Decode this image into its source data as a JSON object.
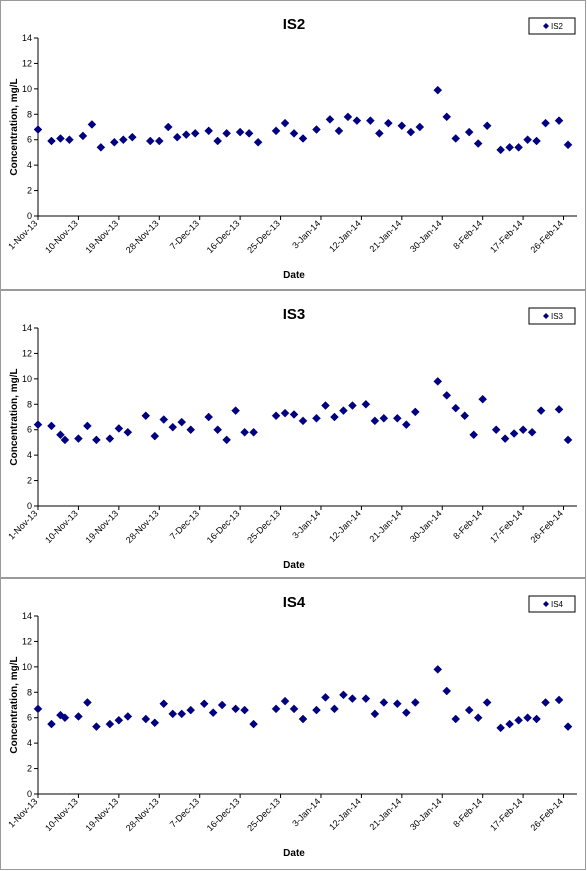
{
  "chart_data": [
    {
      "type": "scatter",
      "title": "IS2",
      "xlabel": "Date",
      "ylabel": "Concentration, mg/L",
      "ylim": [
        0,
        14
      ],
      "yticks": [
        "0",
        "2",
        "4",
        "6",
        "8",
        "10",
        "12",
        "14"
      ],
      "xlim": [
        "1-Nov-13",
        "1-Mar-14"
      ],
      "xtick_labels": [
        "1-Nov-13",
        "10-Nov-13",
        "19-Nov-13",
        "28-Nov-13",
        "7-Dec-13",
        "16-Dec-13",
        "25-Dec-13",
        "3-Jan-14",
        "12-Jan-14",
        "21-Jan-14",
        "30-Jan-14",
        "8-Feb-14",
        "17-Feb-14",
        "26-Feb-14"
      ],
      "grid": false,
      "legend_position": "top-right",
      "marker_color": "#000080",
      "series": [
        {
          "name": "IS2",
          "x": [
            "1-Nov-13",
            "4-Nov-13",
            "6-Nov-13",
            "8-Nov-13",
            "11-Nov-13",
            "13-Nov-13",
            "15-Nov-13",
            "18-Nov-13",
            "20-Nov-13",
            "22-Nov-13",
            "26-Nov-13",
            "28-Nov-13",
            "30-Nov-13",
            "2-Dec-13",
            "4-Dec-13",
            "6-Dec-13",
            "9-Dec-13",
            "11-Dec-13",
            "13-Dec-13",
            "16-Dec-13",
            "18-Dec-13",
            "20-Dec-13",
            "24-Dec-13",
            "26-Dec-13",
            "28-Dec-13",
            "30-Dec-13",
            "2-Jan-14",
            "5-Jan-14",
            "7-Jan-14",
            "9-Jan-14",
            "11-Jan-14",
            "14-Jan-14",
            "16-Jan-14",
            "18-Jan-14",
            "21-Jan-14",
            "23-Jan-14",
            "25-Jan-14",
            "29-Jan-14",
            "31-Jan-14",
            "2-Feb-14",
            "5-Feb-14",
            "7-Feb-14",
            "9-Feb-14",
            "12-Feb-14",
            "14-Feb-14",
            "16-Feb-14",
            "18-Feb-14",
            "20-Feb-14",
            "22-Feb-14",
            "25-Feb-14",
            "27-Feb-14"
          ],
          "y": [
            6.8,
            5.9,
            6.1,
            6.0,
            6.3,
            7.2,
            5.4,
            5.8,
            6.0,
            6.2,
            5.9,
            5.9,
            7.0,
            6.2,
            6.4,
            6.5,
            6.7,
            5.9,
            6.5,
            6.6,
            6.5,
            5.8,
            6.7,
            7.3,
            6.5,
            6.1,
            6.8,
            7.6,
            6.7,
            7.8,
            7.5,
            7.5,
            6.5,
            7.3,
            7.1,
            6.6,
            7.0,
            9.9,
            7.8,
            6.1,
            6.6,
            5.7,
            7.1,
            5.2,
            5.4,
            5.4,
            6.0,
            5.9,
            7.3,
            7.5,
            5.6
          ]
        }
      ]
    },
    {
      "type": "scatter",
      "title": "IS3",
      "xlabel": "Date",
      "ylabel": "Concentration, mg/L",
      "ylim": [
        0,
        14
      ],
      "yticks": [
        "0",
        "2",
        "4",
        "6",
        "8",
        "10",
        "12",
        "14"
      ],
      "xlim": [
        "1-Nov-13",
        "1-Mar-14"
      ],
      "xtick_labels": [
        "1-Nov-13",
        "10-Nov-13",
        "19-Nov-13",
        "28-Nov-13",
        "7-Dec-13",
        "16-Dec-13",
        "25-Dec-13",
        "3-Jan-14",
        "12-Jan-14",
        "21-Jan-14",
        "30-Jan-14",
        "8-Feb-14",
        "17-Feb-14",
        "26-Feb-14"
      ],
      "grid": false,
      "legend_position": "top-right",
      "marker_color": "#000080",
      "series": [
        {
          "name": "IS3",
          "x": [
            "1-Nov-13",
            "4-Nov-13",
            "6-Nov-13",
            "7-Nov-13",
            "10-Nov-13",
            "12-Nov-13",
            "14-Nov-13",
            "17-Nov-13",
            "19-Nov-13",
            "21-Nov-13",
            "25-Nov-13",
            "27-Nov-13",
            "29-Nov-13",
            "1-Dec-13",
            "3-Dec-13",
            "5-Dec-13",
            "9-Dec-13",
            "11-Dec-13",
            "13-Dec-13",
            "15-Dec-13",
            "17-Dec-13",
            "19-Dec-13",
            "24-Dec-13",
            "26-Dec-13",
            "28-Dec-13",
            "30-Dec-13",
            "2-Jan-14",
            "4-Jan-14",
            "6-Jan-14",
            "8-Jan-14",
            "10-Jan-14",
            "13-Jan-14",
            "15-Jan-14",
            "17-Jan-14",
            "20-Jan-14",
            "22-Jan-14",
            "24-Jan-14",
            "29-Jan-14",
            "31-Jan-14",
            "2-Feb-14",
            "4-Feb-14",
            "6-Feb-14",
            "8-Feb-14",
            "11-Feb-14",
            "13-Feb-14",
            "15-Feb-14",
            "17-Feb-14",
            "19-Feb-14",
            "21-Feb-14",
            "25-Feb-14",
            "27-Feb-14"
          ],
          "y": [
            6.4,
            6.3,
            5.6,
            5.2,
            5.3,
            6.3,
            5.2,
            5.3,
            6.1,
            5.8,
            7.1,
            5.5,
            6.8,
            6.2,
            6.6,
            6.0,
            7.0,
            6.0,
            5.2,
            7.5,
            5.8,
            5.8,
            7.1,
            7.3,
            7.2,
            6.7,
            6.9,
            7.9,
            7.0,
            7.5,
            7.9,
            8.0,
            6.7,
            6.9,
            6.9,
            6.4,
            7.4,
            9.8,
            8.7,
            7.7,
            7.1,
            5.6,
            8.4,
            6.0,
            5.3,
            5.7,
            6.0,
            5.8,
            7.5,
            7.6,
            5.2
          ]
        }
      ]
    },
    {
      "type": "scatter",
      "title": "IS4",
      "xlabel": "Date",
      "ylabel": "Concentration, mg/L",
      "ylim": [
        0,
        14
      ],
      "yticks": [
        "0",
        "2",
        "4",
        "6",
        "8",
        "10",
        "12",
        "14"
      ],
      "xlim": [
        "1-Nov-13",
        "1-Mar-14"
      ],
      "xtick_labels": [
        "1-Nov-13",
        "10-Nov-13",
        "19-Nov-13",
        "28-Nov-13",
        "7-Dec-13",
        "16-Dec-13",
        "25-Dec-13",
        "3-Jan-14",
        "12-Jan-14",
        "21-Jan-14",
        "30-Jan-14",
        "8-Feb-14",
        "17-Feb-14",
        "26-Feb-14"
      ],
      "grid": false,
      "legend_position": "top-right",
      "marker_color": "#000080",
      "series": [
        {
          "name": "IS4",
          "x": [
            "1-Nov-13",
            "4-Nov-13",
            "6-Nov-13",
            "7-Nov-13",
            "10-Nov-13",
            "12-Nov-13",
            "14-Nov-13",
            "17-Nov-13",
            "19-Nov-13",
            "21-Nov-13",
            "25-Nov-13",
            "27-Nov-13",
            "29-Nov-13",
            "1-Dec-13",
            "3-Dec-13",
            "5-Dec-13",
            "8-Dec-13",
            "10-Dec-13",
            "12-Dec-13",
            "15-Dec-13",
            "17-Dec-13",
            "19-Dec-13",
            "24-Dec-13",
            "26-Dec-13",
            "28-Dec-13",
            "30-Dec-13",
            "2-Jan-14",
            "4-Jan-14",
            "6-Jan-14",
            "8-Jan-14",
            "10-Jan-14",
            "13-Jan-14",
            "15-Jan-14",
            "17-Jan-14",
            "20-Jan-14",
            "22-Jan-14",
            "24-Jan-14",
            "29-Jan-14",
            "31-Jan-14",
            "2-Feb-14",
            "5-Feb-14",
            "7-Feb-14",
            "9-Feb-14",
            "12-Feb-14",
            "14-Feb-14",
            "16-Feb-14",
            "18-Feb-14",
            "20-Feb-14",
            "22-Feb-14",
            "25-Feb-14",
            "27-Feb-14"
          ],
          "y": [
            6.7,
            5.5,
            6.2,
            6.0,
            6.1,
            7.2,
            5.3,
            5.5,
            5.8,
            6.1,
            5.9,
            5.6,
            7.1,
            6.3,
            6.3,
            6.6,
            7.1,
            6.4,
            7.0,
            6.7,
            6.6,
            5.5,
            6.7,
            7.3,
            6.7,
            5.9,
            6.6,
            7.6,
            6.7,
            7.8,
            7.5,
            7.5,
            6.3,
            7.2,
            7.1,
            6.4,
            7.2,
            9.8,
            8.1,
            5.9,
            6.6,
            6.0,
            7.2,
            5.2,
            5.5,
            5.8,
            6.0,
            5.9,
            7.2,
            7.4,
            5.3
          ]
        }
      ]
    }
  ]
}
